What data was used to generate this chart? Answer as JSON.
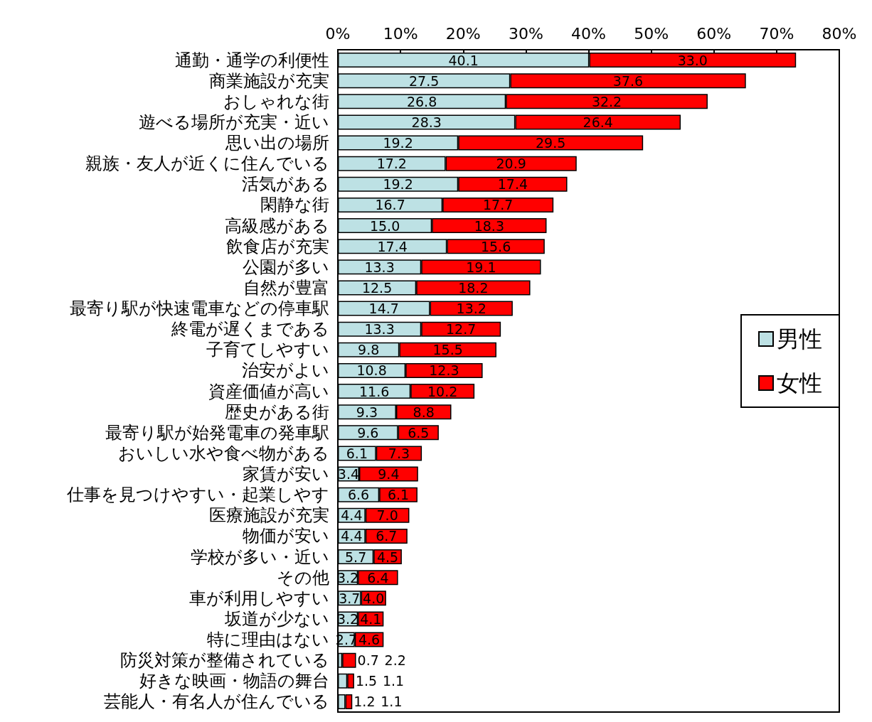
{
  "chart_data": {
    "type": "bar",
    "orientation": "horizontal",
    "stacked": true,
    "categories": [
      "通勤・通学の利便性",
      "商業施設が充実",
      "おしゃれな街",
      "遊べる場所が充実・近い",
      "思い出の場所",
      "親族・友人が近くに住んでいる",
      "活気がある",
      "閑静な街",
      "高級感がある",
      "飲食店が充実",
      "公園が多い",
      "自然が豊富",
      "最寄り駅が快速電車などの停車駅",
      "終電が遅くまである",
      "子育てしやすい",
      "治安がよい",
      "資産価値が高い",
      "歴史がある街",
      "最寄り駅が始発電車の発車駅",
      "おいしい水や食べ物がある",
      "家賃が安い",
      "仕事を見つけやすい・起業しやす",
      "医療施設が充実",
      "物価が安い",
      "学校が多い・近い",
      "その他",
      "車が利用しやすい",
      "坂道が少ない",
      "特に理由はない",
      "防災対策が整備されている",
      "好きな映画・物語の舞台",
      "芸能人・有名人が住んでいる"
    ],
    "series": [
      {
        "name": "男性",
        "color": "#bde1e4",
        "values": [
          40.1,
          27.5,
          26.8,
          28.3,
          19.2,
          17.2,
          19.2,
          16.7,
          15.0,
          17.4,
          13.3,
          12.5,
          14.7,
          13.3,
          9.8,
          10.8,
          11.6,
          9.3,
          9.6,
          6.1,
          3.4,
          6.6,
          4.4,
          4.4,
          5.7,
          3.2,
          3.7,
          3.2,
          2.7,
          0.7,
          1.5,
          1.2
        ],
        "value_labels": [
          "40.1",
          "27.5",
          "26.8",
          "28.3",
          "19.2",
          "17.2",
          "19.2",
          "16.7",
          "15.0",
          "17.4",
          "13.3",
          "12.5",
          "14.7",
          "13.3",
          "9.8",
          "10.8",
          "11.6",
          "9.3",
          "9.6",
          "6.1",
          "3.4",
          "6.6",
          "4.4",
          "4.4",
          "5.7",
          "3.2",
          "3.7",
          "3.2",
          "2.7",
          "0.7",
          "1.5",
          "1.2"
        ]
      },
      {
        "name": "女性",
        "color": "#ff0000",
        "values": [
          33.0,
          37.6,
          32.2,
          26.4,
          29.5,
          20.9,
          17.4,
          17.7,
          18.3,
          15.6,
          19.1,
          18.2,
          13.2,
          12.7,
          15.5,
          12.3,
          10.2,
          8.8,
          6.5,
          7.3,
          9.4,
          6.1,
          7.0,
          6.7,
          4.5,
          6.4,
          4.0,
          4.1,
          4.6,
          2.2,
          1.1,
          1.1
        ],
        "value_labels": [
          "33.0",
          "37.6",
          "32.2",
          "26.4",
          "29.5",
          "20.9",
          "17.4",
          "17.7",
          "18.3",
          "15.6",
          "19.1",
          "18.2",
          "13.2",
          "12.7",
          "15.5",
          "12.3",
          "10.2",
          "8.8",
          "6.5",
          "7.3",
          "9.4",
          "6.1",
          "7.0",
          "6.7",
          "4.5",
          "6.4",
          "4.0",
          "4.1",
          "4.6",
          "2.2",
          "1.1",
          "1.1"
        ]
      }
    ],
    "xlim": [
      0,
      80
    ],
    "xticks": [
      {
        "value": 0,
        "label": "0%"
      },
      {
        "value": 10,
        "label": "10%"
      },
      {
        "value": 20,
        "label": "20%"
      },
      {
        "value": 30,
        "label": "30%"
      },
      {
        "value": 40,
        "label": "40%"
      },
      {
        "value": 50,
        "label": "50%"
      },
      {
        "value": 60,
        "label": "60%"
      },
      {
        "value": 70,
        "label": "70%"
      },
      {
        "value": 80,
        "label": "80%"
      }
    ],
    "grid": false,
    "legend": "right"
  }
}
